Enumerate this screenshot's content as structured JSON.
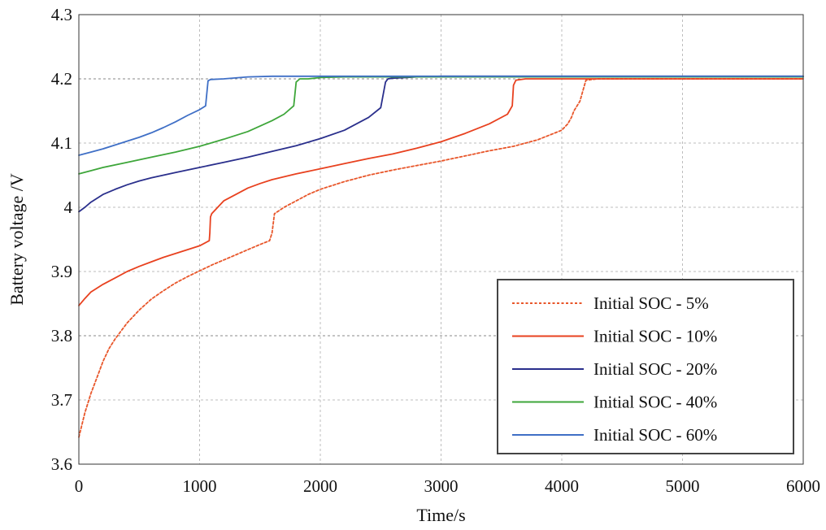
{
  "chart_data": {
    "type": "line",
    "title": "",
    "xlabel": "Time/s",
    "ylabel": "Battery voltage /V",
    "xlim": [
      0,
      6000
    ],
    "ylim": [
      3.6,
      4.3
    ],
    "xticks": [
      0,
      1000,
      2000,
      3000,
      4000,
      5000,
      6000
    ],
    "yticks": [
      3.6,
      3.7,
      3.8,
      3.9,
      4,
      4.1,
      4.2,
      4.3
    ],
    "ytick_labels": [
      "3.6",
      "3.7",
      "3.8",
      "3.9",
      "4",
      "4.1",
      "4.2",
      "4.3"
    ],
    "grid": true,
    "legend_position": "bottom-right",
    "series": [
      {
        "name": "Initial SOC - 5%",
        "color": "#E8562A",
        "dash": "dotted",
        "x": [
          0,
          50,
          100,
          150,
          200,
          250,
          300,
          400,
          500,
          600,
          700,
          800,
          900,
          1000,
          1100,
          1200,
          1300,
          1400,
          1500,
          1580,
          1600,
          1620,
          1700,
          1800,
          1900,
          2000,
          2200,
          2400,
          2600,
          2800,
          3000,
          3200,
          3400,
          3600,
          3800,
          4000,
          4050,
          4080,
          4100,
          4150,
          4200,
          4300,
          4400,
          6000
        ],
        "y": [
          3.642,
          3.68,
          3.71,
          3.735,
          3.76,
          3.78,
          3.795,
          3.82,
          3.84,
          3.857,
          3.87,
          3.882,
          3.892,
          3.901,
          3.91,
          3.918,
          3.926,
          3.934,
          3.942,
          3.948,
          3.96,
          3.99,
          4.0,
          4.01,
          4.02,
          4.028,
          4.04,
          4.05,
          4.058,
          4.065,
          4.072,
          4.08,
          4.088,
          4.095,
          4.105,
          4.12,
          4.13,
          4.14,
          4.15,
          4.165,
          4.198,
          4.2,
          4.2,
          4.2
        ]
      },
      {
        "name": "Initial SOC - 10%",
        "color": "#E8411F",
        "dash": "solid",
        "x": [
          0,
          50,
          100,
          200,
          300,
          400,
          500,
          600,
          700,
          800,
          900,
          1000,
          1080,
          1085,
          1090,
          1100,
          1150,
          1200,
          1300,
          1400,
          1500,
          1600,
          1800,
          2000,
          2200,
          2400,
          2600,
          2800,
          3000,
          3200,
          3400,
          3550,
          3590,
          3600,
          3620,
          3700,
          6000
        ],
        "y": [
          3.847,
          3.858,
          3.868,
          3.88,
          3.89,
          3.9,
          3.908,
          3.915,
          3.922,
          3.928,
          3.934,
          3.94,
          3.948,
          3.96,
          3.985,
          3.99,
          4.0,
          4.01,
          4.02,
          4.03,
          4.037,
          4.043,
          4.052,
          4.06,
          4.068,
          4.076,
          4.083,
          4.092,
          4.102,
          4.115,
          4.13,
          4.145,
          4.158,
          4.19,
          4.198,
          4.2,
          4.2
        ]
      },
      {
        "name": "Initial SOC - 20%",
        "color": "#2A2F8C",
        "dash": "solid",
        "x": [
          0,
          50,
          100,
          200,
          300,
          400,
          500,
          600,
          800,
          1000,
          1200,
          1400,
          1600,
          1800,
          2000,
          2200,
          2400,
          2500,
          2540,
          2560,
          2600,
          2800,
          3000,
          6000
        ],
        "y": [
          3.993,
          4.0,
          4.008,
          4.02,
          4.028,
          4.035,
          4.041,
          4.046,
          4.054,
          4.062,
          4.07,
          4.078,
          4.087,
          4.096,
          4.107,
          4.12,
          4.14,
          4.155,
          4.195,
          4.2,
          4.201,
          4.203,
          4.204,
          4.204
        ]
      },
      {
        "name": "Initial SOC - 40%",
        "color": "#3EA63A",
        "dash": "solid",
        "x": [
          0,
          100,
          200,
          400,
          600,
          800,
          1000,
          1200,
          1400,
          1600,
          1700,
          1780,
          1800,
          1830,
          1900,
          2000,
          2200,
          6000
        ],
        "y": [
          4.052,
          4.057,
          4.062,
          4.07,
          4.078,
          4.086,
          4.095,
          4.106,
          4.118,
          4.135,
          4.145,
          4.158,
          4.195,
          4.2,
          4.2,
          4.202,
          4.203,
          4.203
        ]
      },
      {
        "name": "Initial SOC - 60%",
        "color": "#3F6FC6",
        "dash": "solid",
        "x": [
          0,
          100,
          200,
          300,
          400,
          500,
          600,
          700,
          800,
          900,
          1000,
          1050,
          1070,
          1090,
          1200,
          1400,
          1600,
          6000
        ],
        "y": [
          4.081,
          4.086,
          4.091,
          4.097,
          4.103,
          4.109,
          4.116,
          4.124,
          4.133,
          4.143,
          4.152,
          4.158,
          4.197,
          4.199,
          4.2,
          4.203,
          4.204,
          4.204
        ]
      }
    ]
  }
}
